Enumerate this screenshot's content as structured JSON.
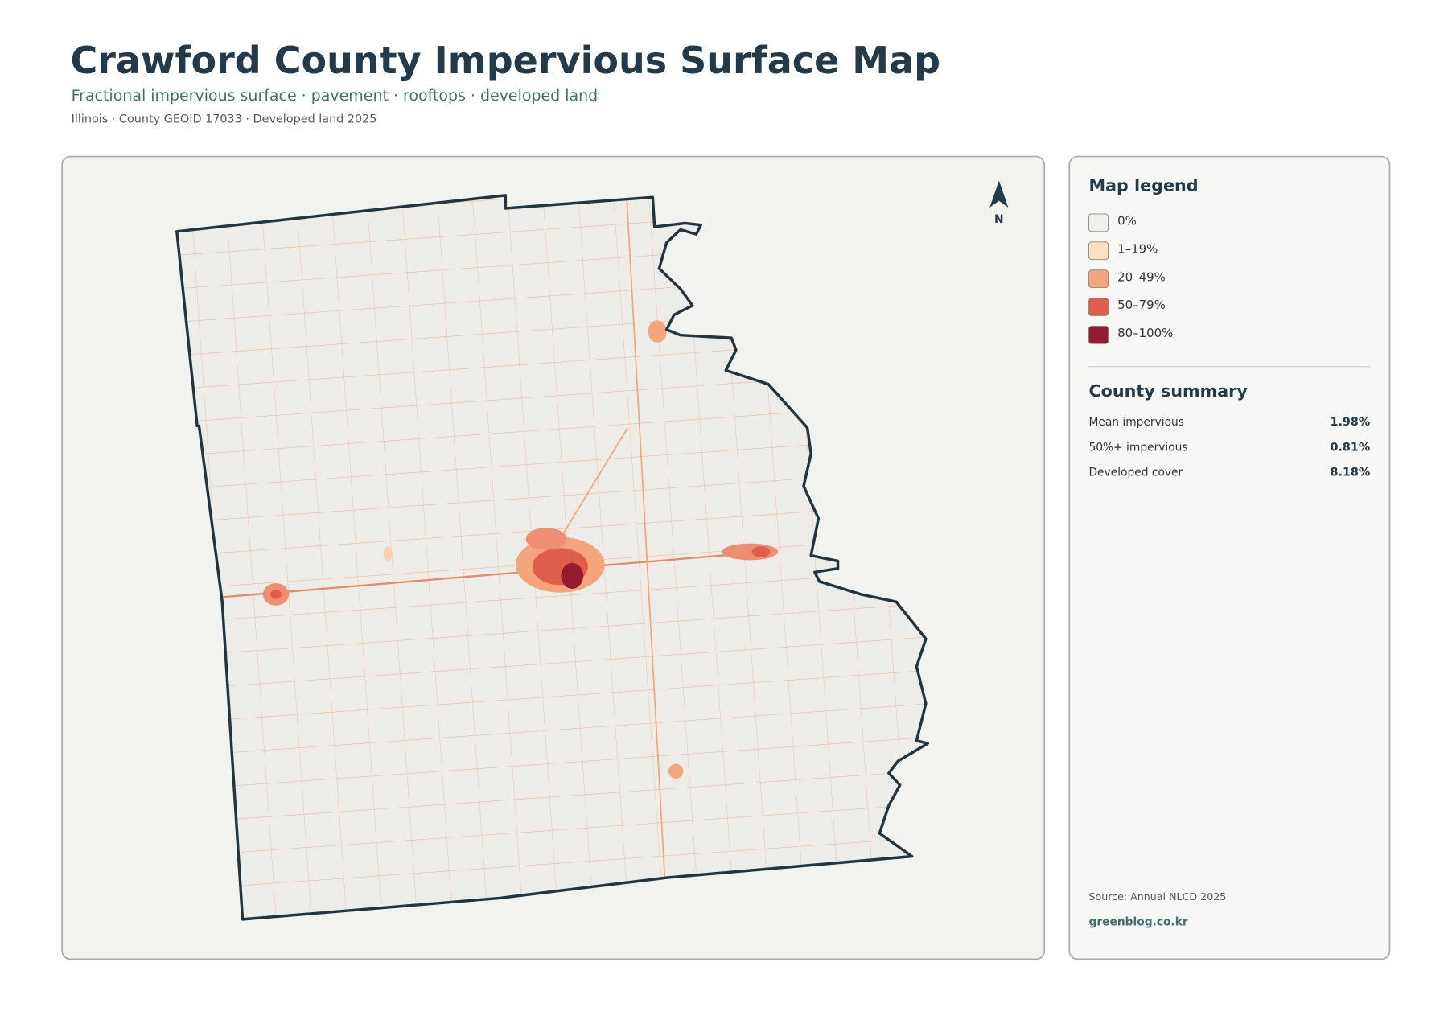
{
  "header": {
    "title": "Crawford County Impervious Surface Map",
    "subtitle": "Fractional impervious surface · pavement · rooftops · developed land",
    "meta": "Illinois · County GEOID 17033 · Developed land 2025"
  },
  "map": {
    "north_label": "N"
  },
  "legend": {
    "title": "Map legend",
    "items": [
      {
        "label": "0%",
        "color": "#efefec"
      },
      {
        "label": "1–19%",
        "color": "#fde0c0"
      },
      {
        "label": "20–49%",
        "color": "#f4a57c"
      },
      {
        "label": "50–79%",
        "color": "#df5e4b"
      },
      {
        "label": "80–100%",
        "color": "#951b31"
      }
    ]
  },
  "summary": {
    "title": "County summary",
    "rows": [
      {
        "label": "Mean impervious",
        "value": "1.98%"
      },
      {
        "label": "50%+ impervious",
        "value": "0.81%"
      },
      {
        "label": "Developed cover",
        "value": "8.18%"
      }
    ]
  },
  "footer": {
    "source": "Source: Annual NLCD 2025",
    "site": "greenblog.co.kr"
  }
}
